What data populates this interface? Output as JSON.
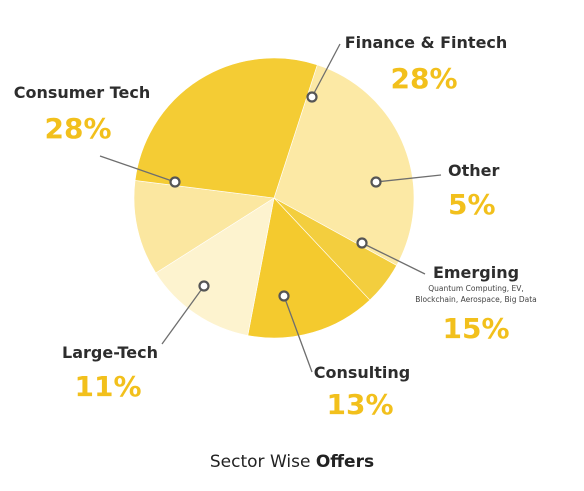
{
  "chart_data": {
    "type": "pie",
    "slices": [
      {
        "label": "Finance & Fintech",
        "value": 28,
        "value_label": "28%",
        "color": "#FCE9A5",
        "sublabel": ""
      },
      {
        "label": "Other",
        "value": 5,
        "value_label": "5%",
        "color": "#F3CE3E",
        "sublabel": ""
      },
      {
        "label": "Emerging",
        "value": 15,
        "value_label": "15%",
        "color": "#F4CA2E",
        "sublabel": [
          "Quantum Computing, EV,",
          "Blockchain, Aerospace, Big Data"
        ]
      },
      {
        "label": "Consulting",
        "value": 13,
        "value_label": "13%",
        "color": "#FDF3CF",
        "sublabel": ""
      },
      {
        "label": "Large-Tech",
        "value": 11,
        "value_label": "11%",
        "color": "#FBE7A0",
        "sublabel": ""
      },
      {
        "label": "Consumer Tech",
        "value": 28,
        "value_label": "28%",
        "color": "#F4CC34",
        "sublabel": ""
      }
    ],
    "accent_color": "#F2C01C",
    "title_regular": "Sector Wise",
    "title_bold": "Offers"
  }
}
